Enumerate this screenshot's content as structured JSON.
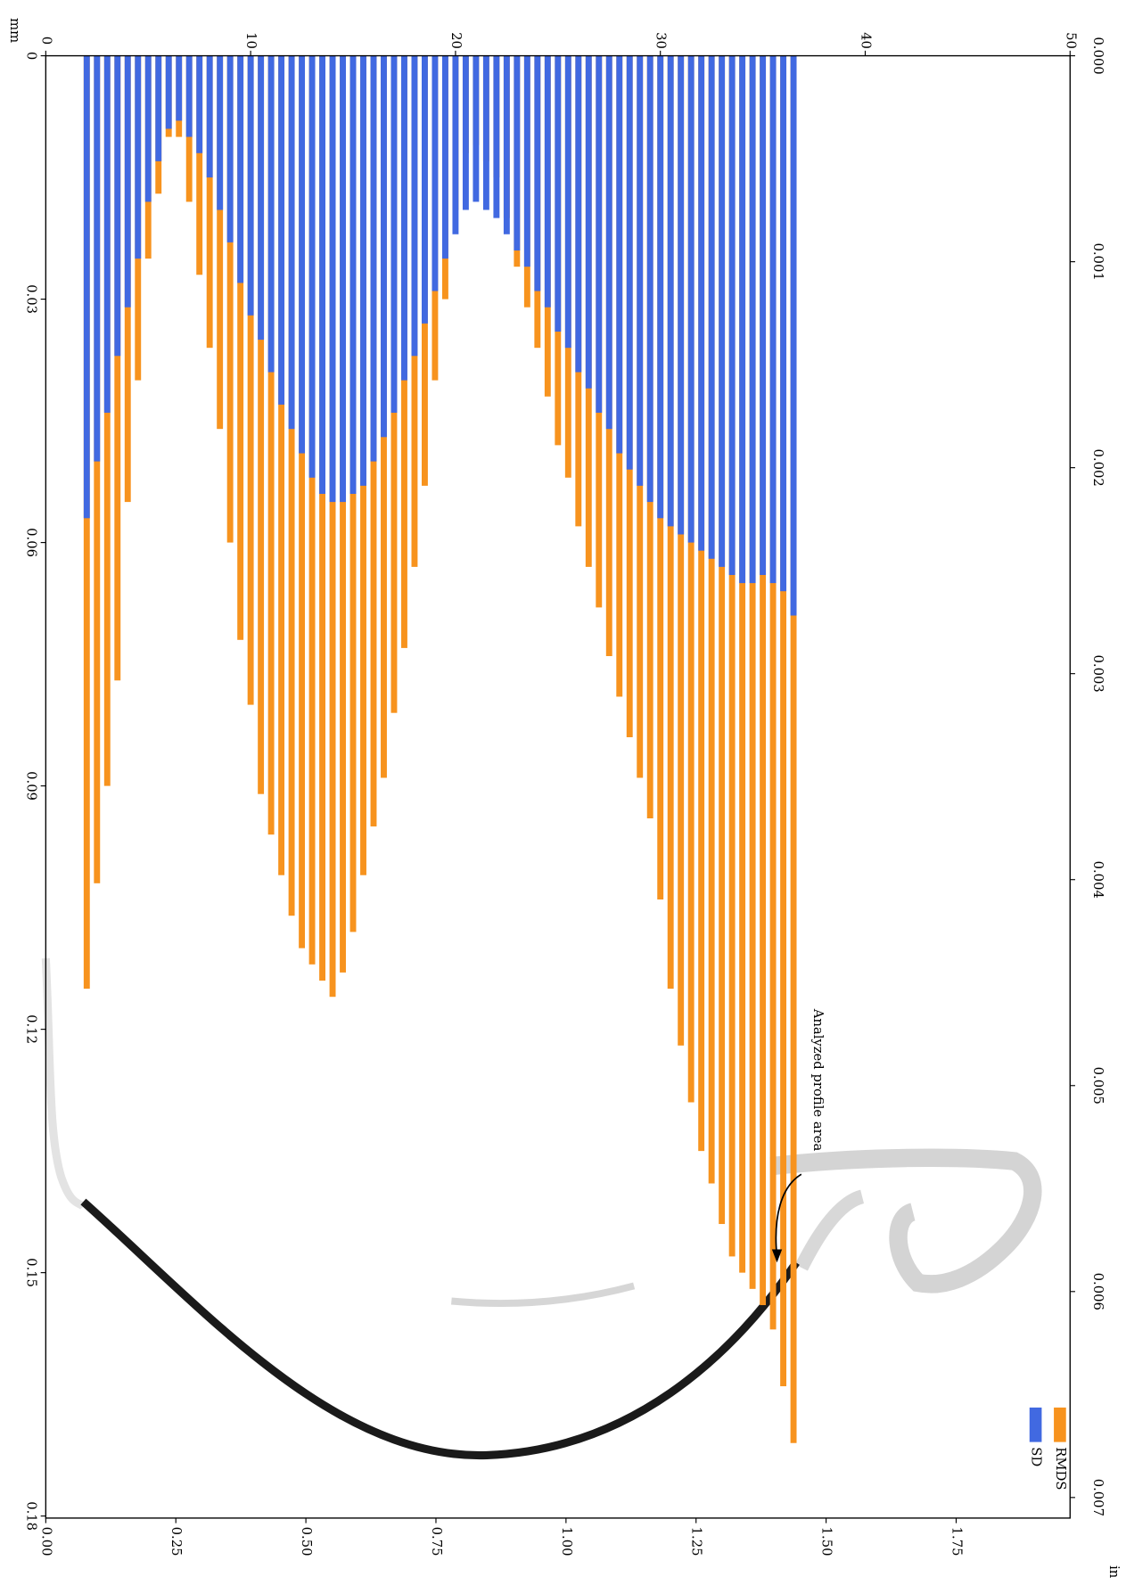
{
  "chart_data": {
    "type": "bar",
    "annotation": "Analyzed profile area",
    "x_unit_label": "mm",
    "x2_unit_label": "in",
    "x": [
      2.0,
      2.5,
      3.0,
      3.5,
      4.0,
      4.5,
      5.0,
      5.5,
      6.0,
      6.5,
      7.0,
      7.5,
      8.0,
      8.5,
      9.0,
      9.5,
      10.0,
      10.5,
      11.0,
      11.5,
      12.0,
      12.5,
      13.0,
      13.5,
      14.0,
      14.5,
      15.0,
      15.5,
      16.0,
      16.5,
      17.0,
      17.5,
      18.0,
      18.5,
      19.0,
      19.5,
      20.0,
      20.5,
      21.0,
      21.5,
      22.0,
      22.5,
      23.0,
      23.5,
      24.0,
      24.5,
      25.0,
      25.5,
      26.0,
      26.5,
      27.0,
      27.5,
      28.0,
      28.5,
      29.0,
      29.5,
      30.0,
      30.5,
      31.0,
      31.5,
      32.0,
      32.5,
      33.0,
      33.5,
      34.0,
      34.5,
      35.0,
      35.5,
      36.0,
      36.5
    ],
    "series": [
      {
        "name": "RMDS",
        "color": "#f7931e",
        "values": [
          0.115,
          0.102,
          0.09,
          0.077,
          0.055,
          0.04,
          0.025,
          0.017,
          0.01,
          0.01,
          0.018,
          0.027,
          0.036,
          0.046,
          0.06,
          0.072,
          0.08,
          0.091,
          0.096,
          0.101,
          0.106,
          0.11,
          0.112,
          0.114,
          0.116,
          0.113,
          0.108,
          0.101,
          0.095,
          0.089,
          0.081,
          0.073,
          0.063,
          0.053,
          0.04,
          0.03,
          0.019,
          0.012,
          0.011,
          0.013,
          0.015,
          0.02,
          0.026,
          0.031,
          0.036,
          0.042,
          0.048,
          0.052,
          0.058,
          0.063,
          0.068,
          0.074,
          0.079,
          0.084,
          0.089,
          0.094,
          0.104,
          0.115,
          0.122,
          0.129,
          0.135,
          0.139,
          0.144,
          0.148,
          0.15,
          0.152,
          0.154,
          0.157,
          0.164,
          0.171
        ]
      },
      {
        "name": "SD",
        "color": "#4169e1",
        "values": [
          0.057,
          0.05,
          0.044,
          0.037,
          0.031,
          0.025,
          0.018,
          0.013,
          0.009,
          0.008,
          0.01,
          0.012,
          0.015,
          0.019,
          0.023,
          0.028,
          0.032,
          0.035,
          0.039,
          0.043,
          0.046,
          0.049,
          0.052,
          0.054,
          0.055,
          0.055,
          0.054,
          0.053,
          0.05,
          0.047,
          0.044,
          0.04,
          0.037,
          0.033,
          0.029,
          0.025,
          0.022,
          0.019,
          0.018,
          0.019,
          0.02,
          0.022,
          0.024,
          0.026,
          0.029,
          0.031,
          0.034,
          0.036,
          0.039,
          0.041,
          0.044,
          0.046,
          0.049,
          0.051,
          0.053,
          0.055,
          0.057,
          0.058,
          0.059,
          0.06,
          0.061,
          0.062,
          0.063,
          0.064,
          0.065,
          0.065,
          0.064,
          0.065,
          0.066,
          0.069
        ]
      }
    ],
    "xlim": [
      0,
      50
    ],
    "xticks": [
      0,
      10,
      20,
      30,
      40,
      50
    ],
    "ylim": [
      0,
      0.18
    ],
    "yticks": [
      0,
      0.03,
      0.06,
      0.09,
      0.12,
      0.15,
      0.18
    ],
    "x2lim": [
      0,
      1.969
    ],
    "x2ticks": [
      {
        "value": 0,
        "label": "0.00"
      },
      {
        "value": 0.25,
        "label": "0.25"
      },
      {
        "value": 0.5,
        "label": "0.50"
      },
      {
        "value": 0.75,
        "label": "0.75"
      },
      {
        "value": 1,
        "label": "1.00"
      },
      {
        "value": 1.25,
        "label": "1.25"
      },
      {
        "value": 1.5,
        "label": "1.50"
      },
      {
        "value": 1.75,
        "label": "1.75"
      }
    ],
    "y2lim": [
      0,
      0.00709
    ],
    "y2ticks": [
      {
        "value": 0,
        "label": "0.000"
      },
      {
        "value": 0.001,
        "label": "0.001"
      },
      {
        "value": 0.002,
        "label": "0.002"
      },
      {
        "value": 0.003,
        "label": "0.003"
      },
      {
        "value": 0.004,
        "label": "0.004"
      },
      {
        "value": 0.005,
        "label": "0.005"
      },
      {
        "value": 0.006,
        "label": "0.006"
      },
      {
        "value": 0.007,
        "label": "0.007"
      }
    ],
    "legend": "lower right"
  }
}
